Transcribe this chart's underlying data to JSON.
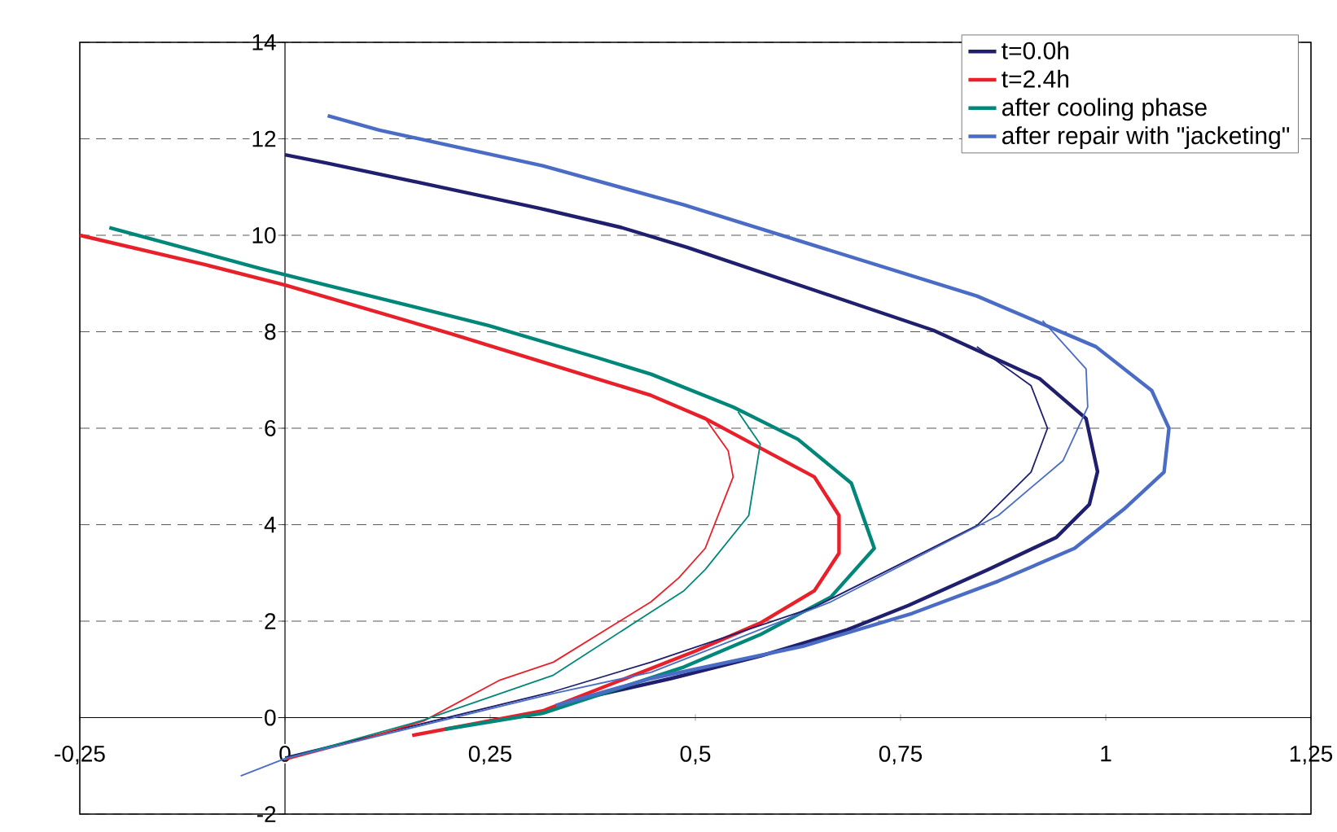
{
  "chart_data": {
    "type": "line",
    "xlim": [
      -0.25,
      1.25
    ],
    "ylim": [
      -2,
      14
    ],
    "xticks": [
      {
        "value": -0.25,
        "label": "-0,25"
      },
      0,
      {
        "value": 0.25,
        "label": "0,25"
      },
      {
        "value": 0.5,
        "label": "0,5"
      },
      {
        "value": 0.75,
        "label": "0,75"
      },
      1,
      {
        "value": 1.25,
        "label": "1,25"
      }
    ],
    "yticks": [
      -2,
      0,
      2,
      4,
      6,
      8,
      10,
      12,
      14
    ],
    "grid": "y",
    "legend": "top right",
    "series": [
      {
        "name": "t=0.0h",
        "color": "#1f1f6e",
        "x": [
          0,
          0.05,
          0.17,
          0.31,
          0.41,
          0.49,
          0.79,
          0.92,
          0.976,
          0.99,
          0.98,
          0.94,
          0.857,
          0.76,
          0.685,
          0.58,
          0.47,
          0.347
        ],
        "values": [
          11.67,
          11.5,
          11.07,
          10.56,
          10.16,
          9.75,
          8.03,
          7.02,
          6.2,
          5.1,
          4.42,
          3.74,
          3.07,
          2.33,
          1.82,
          1.28,
          0.81,
          0.34
        ]
      },
      {
        "name": "t=2.4h",
        "color": "#e8202a",
        "x": [
          -0.25,
          -0.095,
          0,
          0.202,
          0.381,
          0.446,
          0.512,
          0.645,
          0.675,
          0.675,
          0.645,
          0.579,
          0.5,
          0.314,
          0.155
        ],
        "values": [
          10.0,
          9.38,
          8.97,
          7.96,
          7.02,
          6.68,
          6.2,
          4.99,
          4.19,
          3.41,
          2.63,
          1.96,
          1.38,
          0.14,
          -0.37
        ]
      },
      {
        "name": "after cooling phase",
        "color": "#00877a",
        "x": [
          -0.214,
          -0.03,
          0.05,
          0.248,
          0.381,
          0.446,
          0.546,
          0.625,
          0.69,
          0.718,
          0.665,
          0.579,
          0.486,
          0.314,
          0.195
        ],
        "values": [
          10.16,
          9.31,
          8.97,
          8.13,
          7.46,
          7.12,
          6.44,
          5.77,
          4.86,
          3.51,
          2.5,
          1.72,
          1.05,
          0.09,
          -0.24
        ]
      },
      {
        "name": "after repair with \"jacketing\"",
        "color": "#4a6cc4",
        "x": [
          0.052,
          0.115,
          0.314,
          0.486,
          0.843,
          0.988,
          1.056,
          1.077,
          1.071,
          1.022,
          0.962,
          0.869,
          0.764,
          0.631,
          0.446,
          0.33
        ],
        "values": [
          12.48,
          12.18,
          11.44,
          10.63,
          8.74,
          7.69,
          6.78,
          6.0,
          5.09,
          4.32,
          3.51,
          2.83,
          2.16,
          1.48,
          0.81,
          0.25
        ]
      },
      {
        "color": "#1f1f6e",
        "x": [
          0,
          0.327,
          0.446,
          0.645,
          0.843,
          0.909,
          0.929,
          0.909,
          0.843
        ],
        "values": [
          -0.82,
          0.54,
          1.15,
          2.29,
          3.98,
          5.09,
          6.0,
          6.88,
          7.69
        ]
      },
      {
        "color": "#e8202a",
        "x": [
          0,
          0.09,
          0.169,
          0.262,
          0.327,
          0.446,
          0.48,
          0.512,
          0.546,
          0.54,
          0.512
        ],
        "values": [
          -0.88,
          -0.47,
          -0.07,
          0.78,
          1.15,
          2.4,
          2.9,
          3.51,
          4.99,
          5.53,
          6.2
        ]
      },
      {
        "color": "#00877a",
        "x": [
          0,
          0.169,
          0.327,
          0.486,
          0.512,
          0.565,
          0.579,
          0.552
        ],
        "values": [
          -0.85,
          -0.05,
          0.88,
          2.63,
          3.07,
          4.19,
          5.67,
          6.34
        ]
      },
      {
        "color": "#4a6cc4",
        "x": [
          -0.054,
          0,
          0.327,
          0.446,
          0.665,
          0.869,
          0.948,
          0.978,
          0.976,
          0.923
        ],
        "values": [
          -1.21,
          -0.85,
          0.5,
          0.94,
          2.4,
          4.19,
          5.33,
          6.44,
          7.23,
          8.23
        ]
      }
    ]
  }
}
